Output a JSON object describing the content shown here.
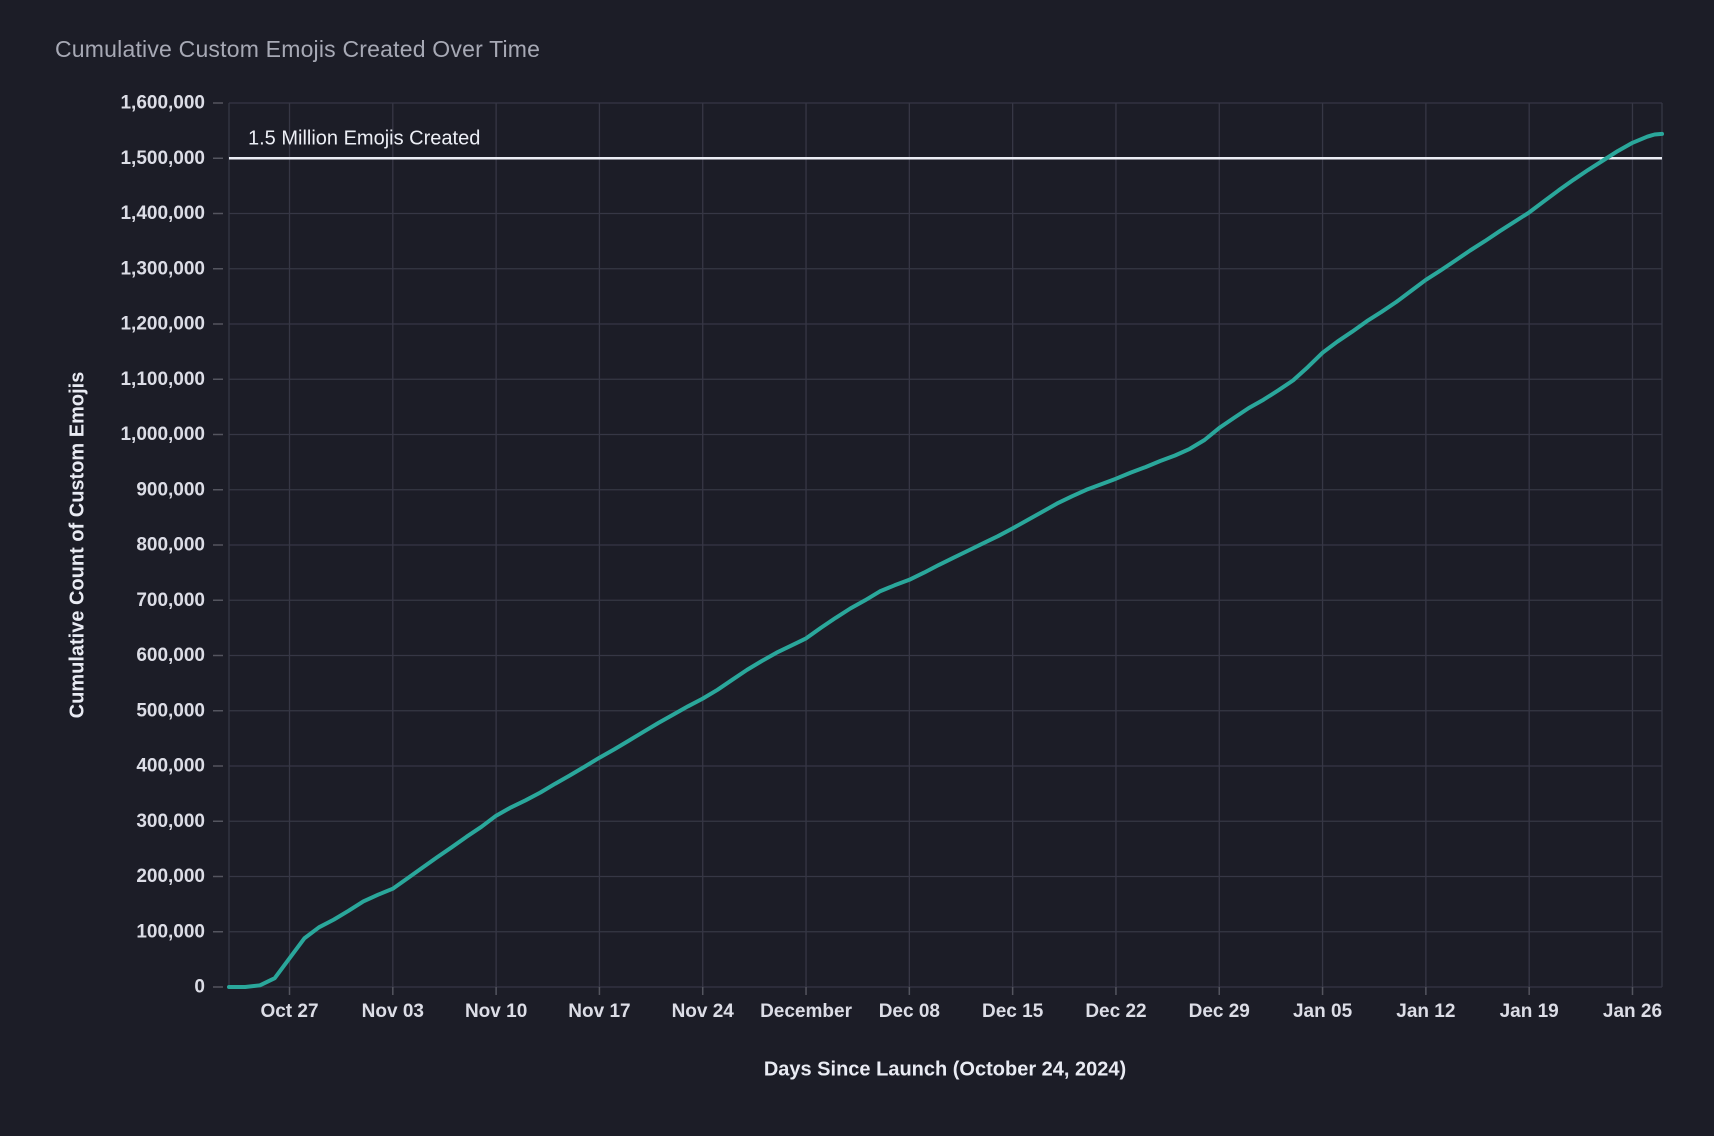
{
  "chart_data": {
    "type": "line",
    "title": "Cumulative Custom Emojis Created Over Time",
    "xlabel": "Days Since Launch (October 24, 2024)",
    "ylabel": "Cumulative Count of Custom Emojis",
    "annotation": "1.5 Million Emojis Created",
    "reference_line_y": 1500000,
    "legend": "none",
    "grid": true,
    "ylim": [
      0,
      1600000
    ],
    "y_tick_step": 100000,
    "y_ticks": [
      0,
      100000,
      200000,
      300000,
      400000,
      500000,
      600000,
      700000,
      800000,
      900000,
      1000000,
      1100000,
      1200000,
      1300000,
      1400000,
      1500000,
      1600000
    ],
    "xlim_days": [
      -1.1,
      96
    ],
    "x_ticks": [
      {
        "label": "Oct 27",
        "day": 3
      },
      {
        "label": "Nov 03",
        "day": 10
      },
      {
        "label": "Nov 10",
        "day": 17
      },
      {
        "label": "Nov 17",
        "day": 24
      },
      {
        "label": "Nov 24",
        "day": 31
      },
      {
        "label": "December",
        "day": 38
      },
      {
        "label": "Dec 08",
        "day": 45
      },
      {
        "label": "Dec 15",
        "day": 52
      },
      {
        "label": "Dec 22",
        "day": 59
      },
      {
        "label": "Dec 29",
        "day": 66
      },
      {
        "label": "Jan 05",
        "day": 73
      },
      {
        "label": "Jan 12",
        "day": 80
      },
      {
        "label": "Jan 19",
        "day": 87
      },
      {
        "label": "Jan 26",
        "day": 94
      }
    ],
    "series": [
      {
        "name": "Cumulative Custom Emojis",
        "points": [
          [
            -1.1,
            0
          ],
          [
            0,
            0
          ],
          [
            1,
            3000
          ],
          [
            2,
            16000
          ],
          [
            3,
            52000
          ],
          [
            4,
            88000
          ],
          [
            5,
            108000
          ],
          [
            6,
            122000
          ],
          [
            7,
            138000
          ],
          [
            8,
            155000
          ],
          [
            9,
            167000
          ],
          [
            10,
            178000
          ],
          [
            11,
            197000
          ],
          [
            12,
            216000
          ],
          [
            13,
            235000
          ],
          [
            14,
            253000
          ],
          [
            15,
            272000
          ],
          [
            16,
            290000
          ],
          [
            17,
            310000
          ],
          [
            18,
            325000
          ],
          [
            19,
            338000
          ],
          [
            20,
            352000
          ],
          [
            21,
            368000
          ],
          [
            22,
            383000
          ],
          [
            23,
            399000
          ],
          [
            24,
            415000
          ],
          [
            25,
            430000
          ],
          [
            26,
            446000
          ],
          [
            27,
            462000
          ],
          [
            28,
            478000
          ],
          [
            29,
            493000
          ],
          [
            30,
            508000
          ],
          [
            31,
            522000
          ],
          [
            32,
            538000
          ],
          [
            33,
            556000
          ],
          [
            34,
            574000
          ],
          [
            35,
            590000
          ],
          [
            36,
            605000
          ],
          [
            37,
            618000
          ],
          [
            38,
            631000
          ],
          [
            39,
            650000
          ],
          [
            40,
            668000
          ],
          [
            41,
            685000
          ],
          [
            42,
            700000
          ],
          [
            43,
            716000
          ],
          [
            44,
            727000
          ],
          [
            45,
            737000
          ],
          [
            46,
            750000
          ],
          [
            47,
            764000
          ],
          [
            48,
            777000
          ],
          [
            49,
            790000
          ],
          [
            50,
            803000
          ],
          [
            51,
            816000
          ],
          [
            52,
            830000
          ],
          [
            53,
            845000
          ],
          [
            54,
            860000
          ],
          [
            55,
            875000
          ],
          [
            56,
            888000
          ],
          [
            57,
            900000
          ],
          [
            58,
            910000
          ],
          [
            59,
            920000
          ],
          [
            60,
            931000
          ],
          [
            61,
            941000
          ],
          [
            62,
            952000
          ],
          [
            63,
            962000
          ],
          [
            64,
            974000
          ],
          [
            65,
            990000
          ],
          [
            66,
            1012000
          ],
          [
            67,
            1030000
          ],
          [
            68,
            1048000
          ],
          [
            69,
            1063000
          ],
          [
            70,
            1080000
          ],
          [
            71,
            1098000
          ],
          [
            72,
            1122000
          ],
          [
            73,
            1148000
          ],
          [
            74,
            1168000
          ],
          [
            75,
            1186000
          ],
          [
            76,
            1205000
          ],
          [
            77,
            1222000
          ],
          [
            78,
            1240000
          ],
          [
            79,
            1260000
          ],
          [
            80,
            1280000
          ],
          [
            81,
            1297000
          ],
          [
            82,
            1315000
          ],
          [
            83,
            1333000
          ],
          [
            84,
            1350000
          ],
          [
            85,
            1368000
          ],
          [
            86,
            1385000
          ],
          [
            87,
            1402000
          ],
          [
            88,
            1422000
          ],
          [
            89,
            1442000
          ],
          [
            90,
            1461000
          ],
          [
            91,
            1479000
          ],
          [
            92,
            1496000
          ],
          [
            93,
            1513000
          ],
          [
            94,
            1528000
          ],
          [
            95,
            1539000
          ],
          [
            95.5,
            1543000
          ],
          [
            96,
            1544000
          ]
        ]
      }
    ],
    "colors": {
      "background": "#1c1d27",
      "grid": "#363745",
      "tick_mark": "#54555f",
      "line": "#2aa79b",
      "reference": "#ebedf4",
      "title": "#a7a9b5",
      "tick_label": "#dcdde6",
      "axis_label": "#e9ebf3",
      "annotation": "#eceef5"
    }
  }
}
